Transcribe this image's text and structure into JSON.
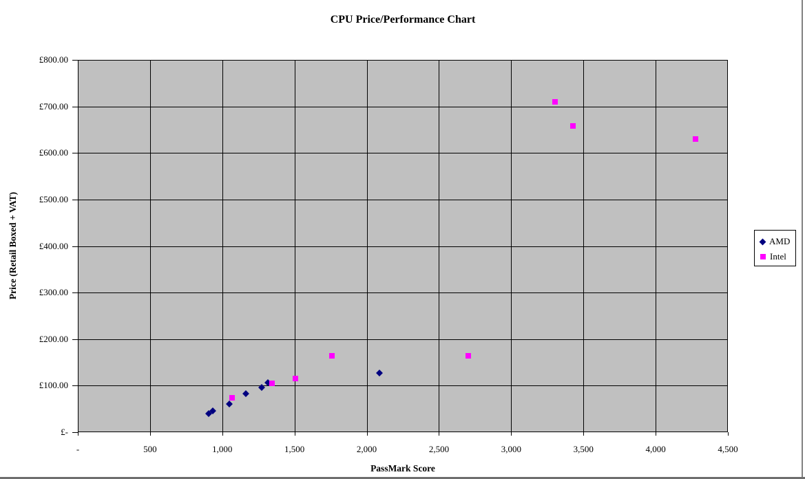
{
  "window": {
    "border_right_color": "#808080",
    "border_bottom_color": "#6e6e6e",
    "background": "#ffffff"
  },
  "chart_data": {
    "type": "scatter",
    "title": "CPU Price/Performance Chart",
    "xlabel": "PassMark Score",
    "ylabel": "Price (Retail Boxed + VAT)",
    "xlim": [
      0,
      4500
    ],
    "ylim": [
      0,
      800
    ],
    "grid": true,
    "plot_background": "#C0C0C0",
    "gridline_color": "#000000",
    "legend_position": "right",
    "x_ticks": [
      {
        "value": 0,
        "label": "-"
      },
      {
        "value": 500,
        "label": "500"
      },
      {
        "value": 1000,
        "label": "1,000"
      },
      {
        "value": 1500,
        "label": "1,500"
      },
      {
        "value": 2000,
        "label": "2,000"
      },
      {
        "value": 2500,
        "label": "2,500"
      },
      {
        "value": 3000,
        "label": "3,000"
      },
      {
        "value": 3500,
        "label": "3,500"
      },
      {
        "value": 4000,
        "label": "4,000"
      },
      {
        "value": 4500,
        "label": "4,500"
      }
    ],
    "y_ticks": [
      {
        "value": 0,
        "label": "£-"
      },
      {
        "value": 100,
        "label": "£100.00"
      },
      {
        "value": 200,
        "label": "£200.00"
      },
      {
        "value": 300,
        "label": "£300.00"
      },
      {
        "value": 400,
        "label": "£400.00"
      },
      {
        "value": 500,
        "label": "£500.00"
      },
      {
        "value": 600,
        "label": "£600.00"
      },
      {
        "value": 700,
        "label": "£700.00"
      },
      {
        "value": 800,
        "label": "£800.00"
      }
    ],
    "series": [
      {
        "name": "AMD",
        "marker": "diamond",
        "color": "#000080",
        "points": [
          [
            900,
            42
          ],
          [
            930,
            47
          ],
          [
            1045,
            62
          ],
          [
            1160,
            85
          ],
          [
            1270,
            97
          ],
          [
            1310,
            108
          ],
          [
            2085,
            128
          ]
        ]
      },
      {
        "name": "Intel",
        "marker": "square",
        "color": "#FF00FF",
        "points": [
          [
            1065,
            76
          ],
          [
            1340,
            107
          ],
          [
            1500,
            117
          ],
          [
            1755,
            166
          ],
          [
            2700,
            165
          ],
          [
            3300,
            712
          ],
          [
            3425,
            660
          ],
          [
            4270,
            631
          ]
        ]
      }
    ]
  }
}
